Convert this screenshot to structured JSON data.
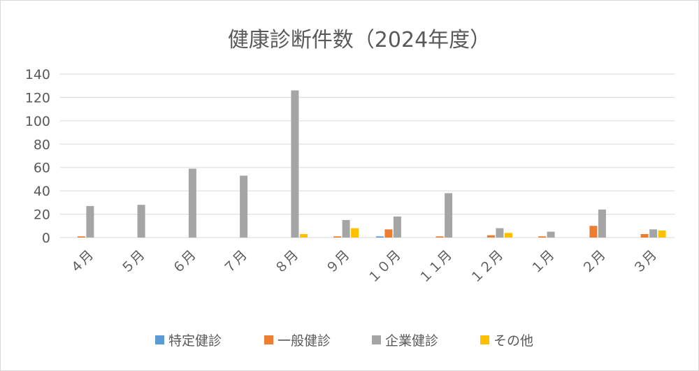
{
  "chart_data": {
    "type": "bar",
    "title": "健康診断件数（2024年度）",
    "categories": [
      "４月",
      "５月",
      "６月",
      "７月",
      "８月",
      "９月",
      "１０月",
      "１１月",
      "１２月",
      "１月",
      "２月",
      "３月"
    ],
    "series": [
      {
        "name": "特定健診",
        "color": "#5b9bd5",
        "values": [
          0,
          0,
          0,
          0,
          0,
          0,
          1,
          0,
          0,
          0,
          0,
          0
        ]
      },
      {
        "name": "一般健診",
        "color": "#ed7d31",
        "values": [
          1,
          0,
          0,
          0,
          0,
          1,
          7,
          1,
          2,
          1,
          10,
          3
        ]
      },
      {
        "name": "企業健診",
        "color": "#a5a5a5",
        "values": [
          27,
          28,
          59,
          53,
          126,
          15,
          18,
          38,
          8,
          5,
          24,
          7
        ]
      },
      {
        "name": "その他",
        "color": "#ffc000",
        "values": [
          0,
          0,
          0,
          0,
          3,
          8,
          0,
          0,
          4,
          0,
          0,
          6
        ]
      }
    ],
    "ylim": [
      0,
      140
    ],
    "yticks": [
      0,
      20,
      40,
      60,
      80,
      100,
      120,
      140
    ],
    "grid": true,
    "legend_position": "bottom"
  }
}
